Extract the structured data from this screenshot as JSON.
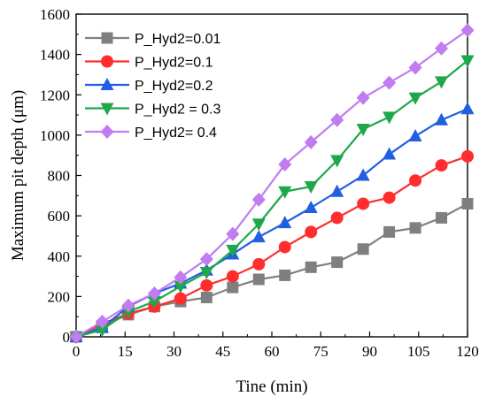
{
  "chart_data": {
    "type": "line",
    "xlabel": "Tine (min)",
    "ylabel": "Maximum pit depth (μm)",
    "xlim": [
      0,
      120
    ],
    "ylim": [
      0,
      1600
    ],
    "xticks": [
      "0",
      "15",
      "30",
      "45",
      "60",
      "75",
      "90",
      "105",
      "120"
    ],
    "yticks": [
      "0",
      "200",
      "400",
      "600",
      "800",
      "1000",
      "1200",
      "1400",
      "1600"
    ],
    "grid": false,
    "legend_position": "top-left",
    "x": [
      0,
      8,
      16,
      24,
      32,
      40,
      48,
      56,
      64,
      72,
      80,
      88,
      96,
      104,
      112,
      120
    ],
    "series": [
      {
        "name": "P_Hyd2=0.01",
        "color": "#7f7f7f",
        "marker": "square",
        "values": [
          0,
          55,
          110,
          150,
          175,
          195,
          245,
          285,
          305,
          345,
          370,
          435,
          520,
          540,
          590,
          660
        ]
      },
      {
        "name": "P_Hyd2=0.1",
        "color": "#ff2d2d",
        "marker": "circle",
        "values": [
          0,
          65,
          115,
          150,
          190,
          255,
          300,
          360,
          445,
          520,
          590,
          660,
          690,
          775,
          850,
          895
        ]
      },
      {
        "name": "P_Hyd2=0.2",
        "color": "#1f5fe0",
        "marker": "triangle-up",
        "values": [
          0,
          45,
          150,
          215,
          265,
          330,
          410,
          495,
          565,
          640,
          720,
          800,
          905,
          995,
          1075,
          1130
        ]
      },
      {
        "name": "P_Hyd2 = 0.3",
        "color": "#1fa84a",
        "marker": "triangle-down",
        "values": [
          0,
          35,
          125,
          175,
          250,
          320,
          430,
          560,
          720,
          745,
          875,
          1030,
          1090,
          1185,
          1265,
          1370
        ]
      },
      {
        "name": "P_Hyd2= 0.4",
        "color": "#c07cf0",
        "marker": "diamond",
        "values": [
          0,
          75,
          155,
          215,
          295,
          385,
          510,
          680,
          855,
          965,
          1075,
          1185,
          1260,
          1335,
          1430,
          1520
        ]
      }
    ]
  }
}
